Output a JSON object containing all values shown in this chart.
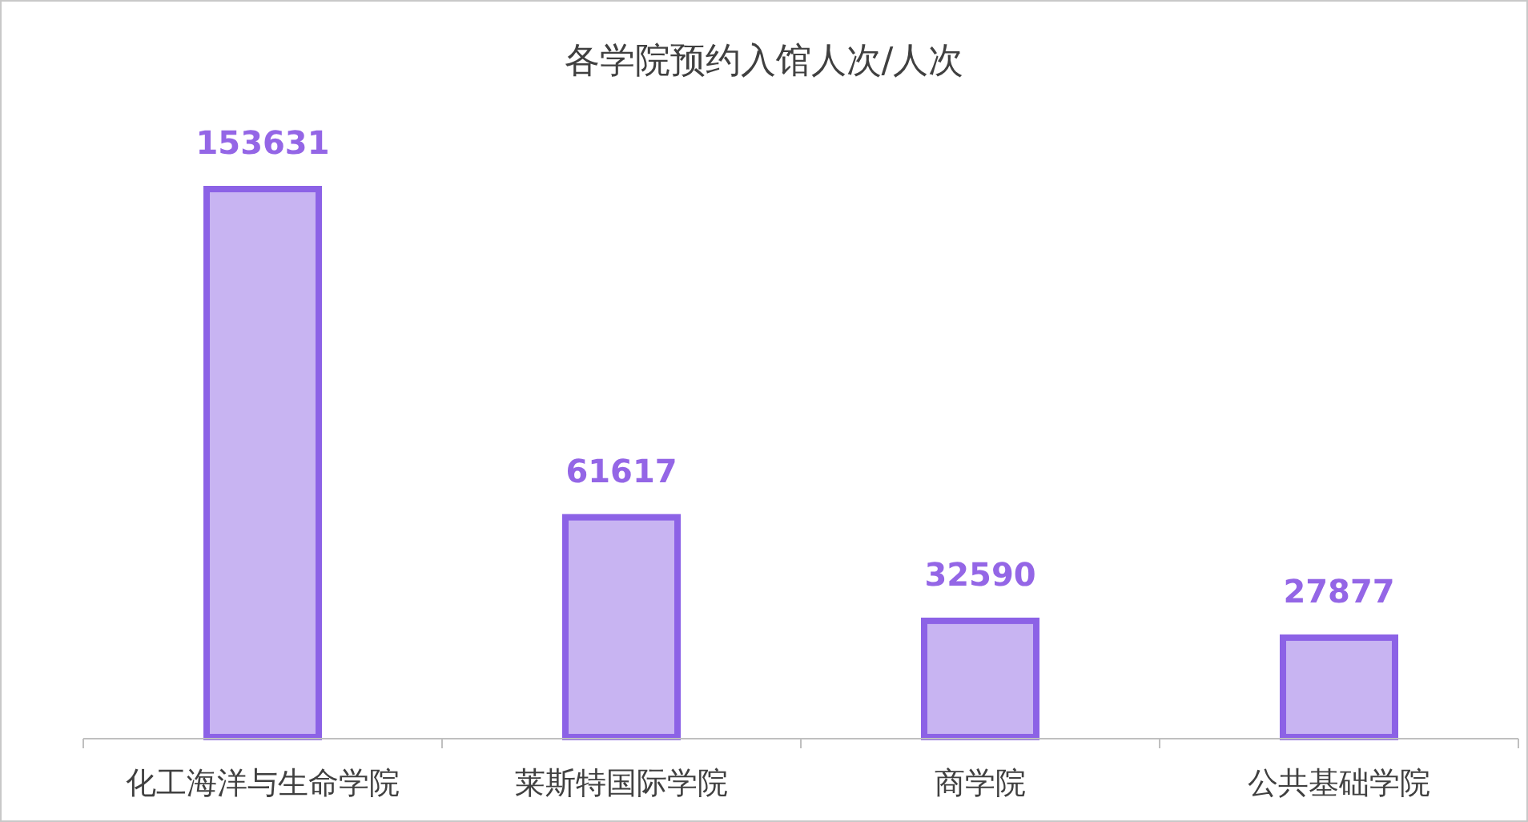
{
  "chart_data": {
    "type": "bar",
    "title": "各学院预约入馆人次/人次",
    "categories": [
      "化工海洋与生命学院",
      "莱斯特国际学院",
      "商学院",
      "公共基础学院"
    ],
    "values": [
      153631,
      61617,
      32590,
      27877
    ],
    "color": "#c8b4f2",
    "data_labels": true
  }
}
